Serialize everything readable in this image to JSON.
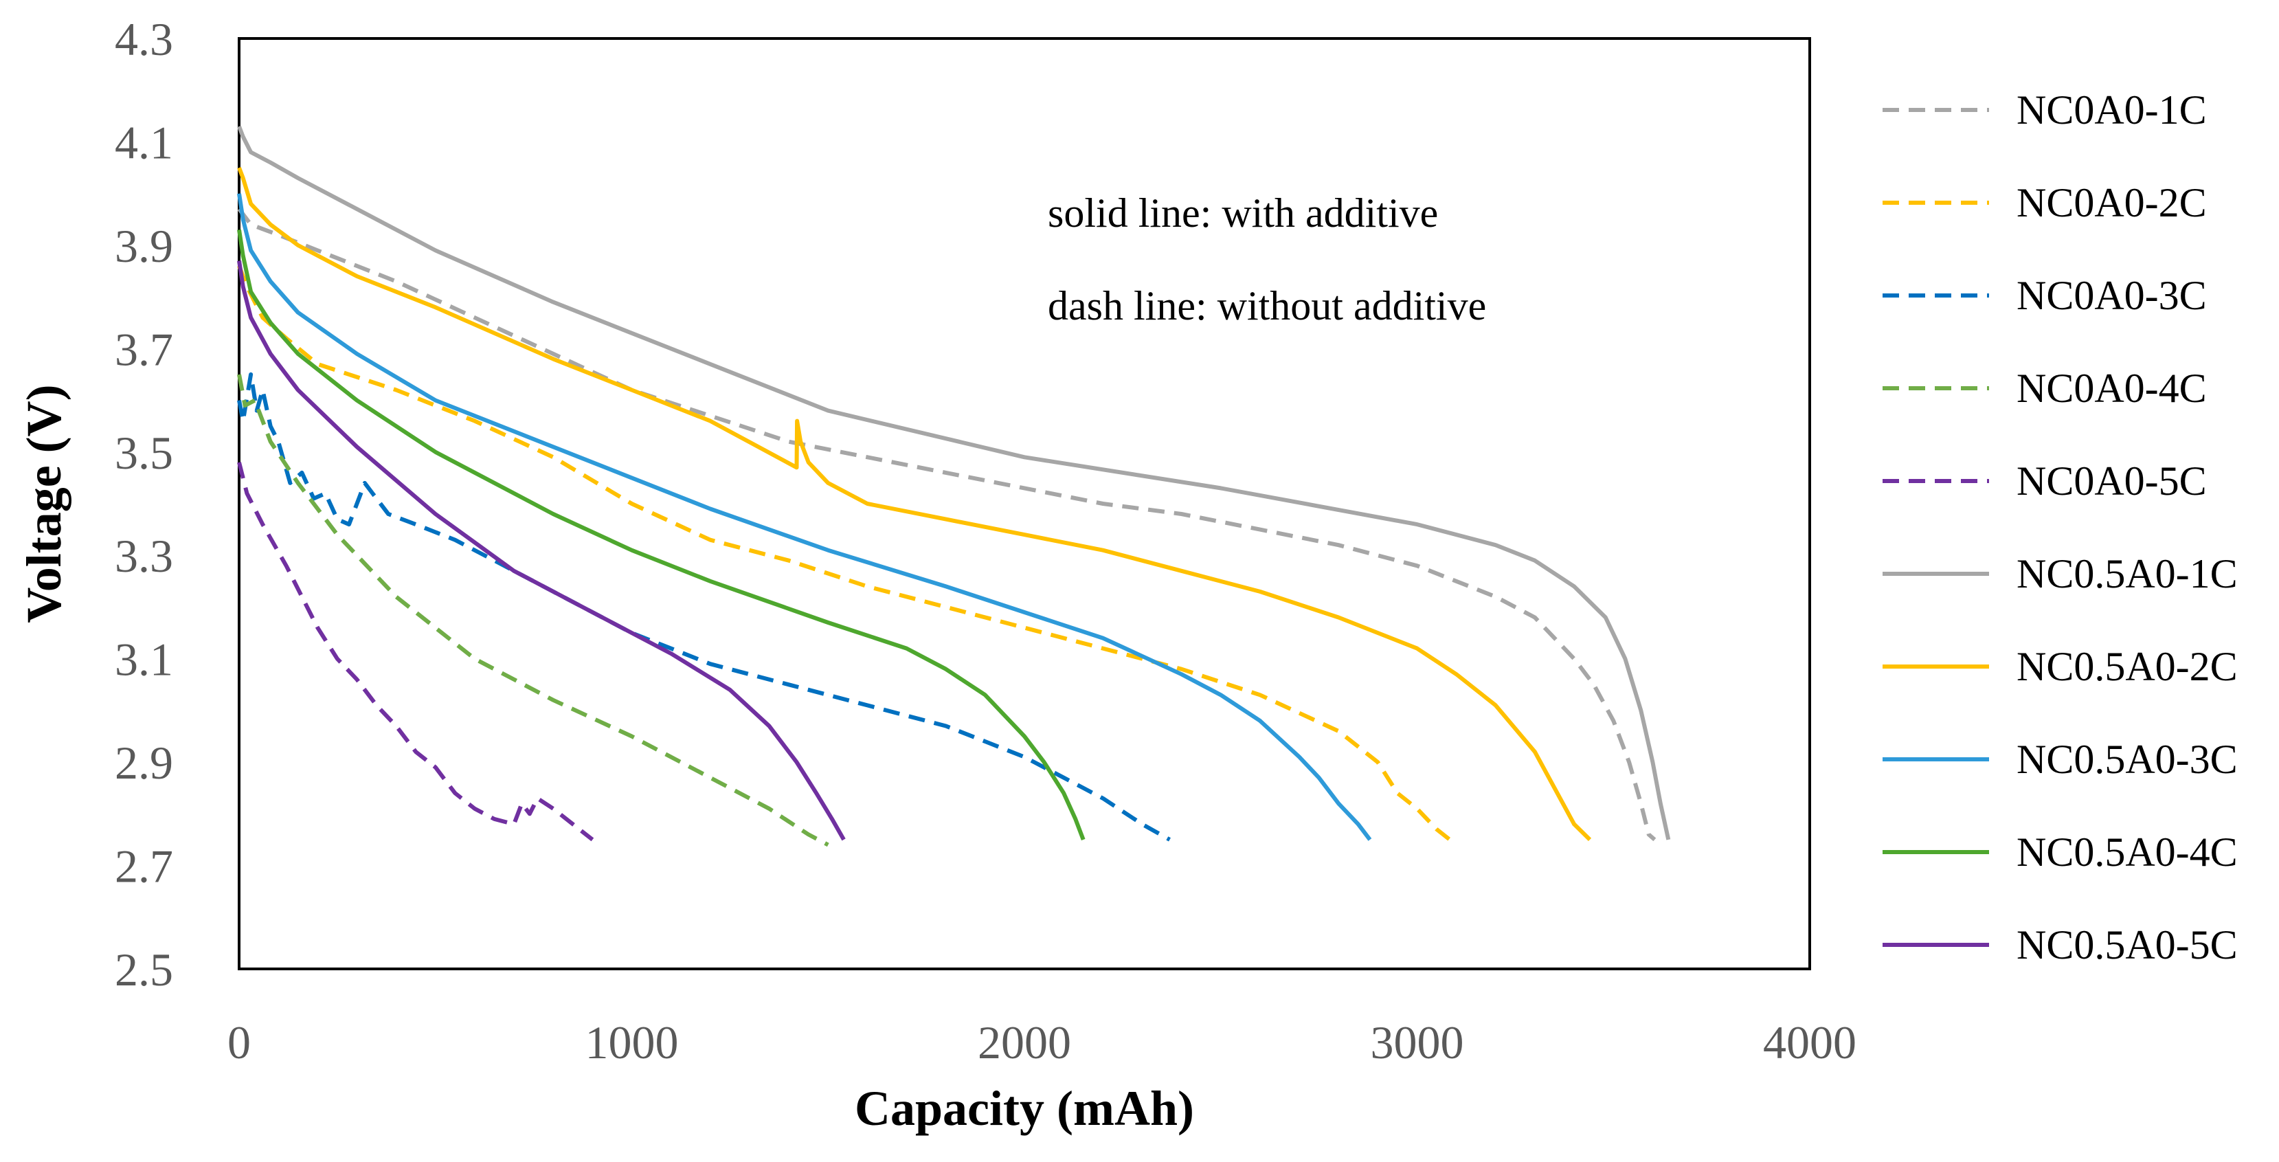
{
  "chart_data": {
    "type": "line",
    "title": "",
    "xlabel": "Capacity (mAh)",
    "ylabel": "Voltage (V)",
    "xlim": [
      0,
      4000
    ],
    "ylim": [
      2.5,
      4.3
    ],
    "xticks": [
      "0",
      "1000",
      "2000",
      "3000",
      "4000"
    ],
    "yticks": [
      "2.5",
      "2.7",
      "2.9",
      "3.1",
      "3.3",
      "3.5",
      "3.7",
      "3.9",
      "4.1",
      "4.3"
    ],
    "grid": false,
    "legend_position": "right",
    "annotations": [
      "solid line: with additive",
      "dash line: without additive"
    ],
    "series": [
      {
        "name": "NC0A0-1C",
        "color": "#A6A6A6",
        "dash": true,
        "x": [
          0,
          30,
          100,
          200,
          400,
          600,
          800,
          1000,
          1200,
          1400,
          1600,
          1800,
          2000,
          2200,
          2400,
          2600,
          2800,
          3000,
          3200,
          3300,
          3400,
          3450,
          3500,
          3540,
          3570,
          3590,
          3605
        ],
        "y": [
          3.97,
          3.94,
          3.92,
          3.89,
          3.83,
          3.76,
          3.69,
          3.62,
          3.57,
          3.52,
          3.49,
          3.46,
          3.43,
          3.4,
          3.38,
          3.35,
          3.32,
          3.28,
          3.22,
          3.18,
          3.1,
          3.05,
          2.98,
          2.9,
          2.82,
          2.76,
          2.75
        ]
      },
      {
        "name": "NC0A0-2C",
        "color": "#FFC000",
        "dash": true,
        "x": [
          0,
          20,
          60,
          120,
          200,
          400,
          600,
          800,
          1000,
          1200,
          1400,
          1600,
          1800,
          2000,
          2200,
          2400,
          2600,
          2800,
          2900,
          2950,
          3000,
          3050,
          3100
        ],
        "y": [
          3.86,
          3.82,
          3.76,
          3.72,
          3.67,
          3.62,
          3.56,
          3.49,
          3.4,
          3.33,
          3.29,
          3.24,
          3.2,
          3.16,
          3.12,
          3.08,
          3.03,
          2.96,
          2.9,
          2.84,
          2.81,
          2.77,
          2.74
        ]
      },
      {
        "name": "NC0A0-3C",
        "color": "#0070C0",
        "dash": true,
        "x": [
          0,
          10,
          30,
          45,
          60,
          80,
          100,
          130,
          160,
          190,
          220,
          250,
          280,
          300,
          320,
          340,
          380,
          450,
          550,
          650,
          800,
          1000,
          1200,
          1400,
          1600,
          1800,
          1900,
          2000,
          2100,
          2200,
          2300,
          2370
        ],
        "y": [
          3.6,
          3.56,
          3.65,
          3.58,
          3.62,
          3.55,
          3.52,
          3.44,
          3.46,
          3.41,
          3.42,
          3.37,
          3.36,
          3.4,
          3.44,
          3.42,
          3.38,
          3.36,
          3.33,
          3.29,
          3.23,
          3.15,
          3.09,
          3.05,
          3.01,
          2.97,
          2.94,
          2.91,
          2.87,
          2.83,
          2.78,
          2.75
        ]
      },
      {
        "name": "NC0A0-4C",
        "color": "#70AD47",
        "dash": true,
        "x": [
          0,
          15,
          40,
          80,
          150,
          250,
          400,
          600,
          800,
          1000,
          1200,
          1350,
          1450,
          1500
        ],
        "y": [
          3.65,
          3.59,
          3.6,
          3.52,
          3.44,
          3.34,
          3.22,
          3.1,
          3.02,
          2.95,
          2.87,
          2.81,
          2.76,
          2.74
        ]
      },
      {
        "name": "NC0A0-5C",
        "color": "#7030A0",
        "dash": true,
        "x": [
          0,
          20,
          60,
          120,
          200,
          250,
          300,
          350,
          400,
          450,
          500,
          550,
          600,
          650,
          700,
          720,
          740,
          760,
          800,
          850,
          900
        ],
        "y": [
          3.48,
          3.42,
          3.36,
          3.28,
          3.16,
          3.1,
          3.06,
          3.01,
          2.97,
          2.92,
          2.89,
          2.84,
          2.81,
          2.79,
          2.78,
          2.82,
          2.8,
          2.83,
          2.81,
          2.78,
          2.75
        ]
      },
      {
        "name": "NC0.5A0-1C",
        "color": "#A6A6A6",
        "dash": false,
        "x": [
          0,
          10,
          30,
          80,
          150,
          300,
          500,
          800,
          1000,
          1200,
          1500,
          2000,
          2500,
          3000,
          3200,
          3300,
          3400,
          3480,
          3530,
          3570,
          3600,
          3620,
          3640
        ],
        "y": [
          4.13,
          4.11,
          4.08,
          4.06,
          4.03,
          3.97,
          3.89,
          3.79,
          3.73,
          3.67,
          3.58,
          3.49,
          3.43,
          3.36,
          3.32,
          3.29,
          3.24,
          3.18,
          3.1,
          3.0,
          2.9,
          2.82,
          2.75
        ]
      },
      {
        "name": "NC0.5A0-2C",
        "color": "#FFC000",
        "dash": false,
        "x": [
          0,
          10,
          30,
          80,
          150,
          300,
          500,
          800,
          1000,
          1200,
          1420,
          1421,
          1430,
          1450,
          1500,
          1600,
          1800,
          2000,
          2200,
          2400,
          2600,
          2800,
          3000,
          3100,
          3200,
          3300,
          3350,
          3400,
          3440
        ],
        "y": [
          4.05,
          4.03,
          3.98,
          3.94,
          3.9,
          3.84,
          3.78,
          3.68,
          3.62,
          3.56,
          3.47,
          3.56,
          3.52,
          3.48,
          3.44,
          3.4,
          3.37,
          3.34,
          3.31,
          3.27,
          3.23,
          3.18,
          3.12,
          3.07,
          3.01,
          2.92,
          2.85,
          2.78,
          2.75
        ]
      },
      {
        "name": "NC0.5A0-3C",
        "color": "#2E9AD9",
        "dash": false,
        "x": [
          0,
          10,
          30,
          80,
          150,
          300,
          500,
          800,
          1000,
          1200,
          1500,
          1800,
          2000,
          2200,
          2400,
          2500,
          2600,
          2700,
          2750,
          2800,
          2850,
          2880
        ],
        "y": [
          4.0,
          3.95,
          3.89,
          3.83,
          3.77,
          3.69,
          3.6,
          3.51,
          3.45,
          3.39,
          3.31,
          3.24,
          3.19,
          3.14,
          3.07,
          3.03,
          2.98,
          2.91,
          2.87,
          2.82,
          2.78,
          2.75
        ]
      },
      {
        "name": "NC0.5A0-4C",
        "color": "#4EA72E",
        "dash": false,
        "x": [
          0,
          10,
          30,
          80,
          150,
          300,
          500,
          800,
          1000,
          1200,
          1500,
          1700,
          1800,
          1900,
          2000,
          2050,
          2100,
          2130,
          2150
        ],
        "y": [
          3.93,
          3.88,
          3.81,
          3.75,
          3.69,
          3.6,
          3.5,
          3.38,
          3.31,
          3.25,
          3.17,
          3.12,
          3.08,
          3.03,
          2.95,
          2.9,
          2.84,
          2.79,
          2.75
        ]
      },
      {
        "name": "NC0.5A0-5C",
        "color": "#7030A0",
        "dash": false,
        "x": [
          0,
          10,
          30,
          80,
          150,
          300,
          500,
          700,
          900,
          1100,
          1250,
          1350,
          1420,
          1470,
          1510,
          1540
        ],
        "y": [
          3.87,
          3.82,
          3.76,
          3.69,
          3.62,
          3.51,
          3.38,
          3.27,
          3.19,
          3.11,
          3.04,
          2.97,
          2.9,
          2.84,
          2.79,
          2.75
        ]
      }
    ]
  }
}
